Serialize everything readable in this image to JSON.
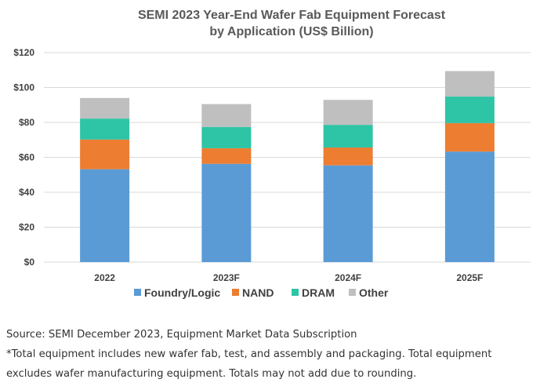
{
  "chart_data": {
    "type": "bar",
    "stacked": true,
    "title": [
      "SEMI 2023 Year-End Wafer Fab Equipment Forecast",
      "by Application (US$ Billion)"
    ],
    "categories": [
      "2022",
      "2023F",
      "2024F",
      "2025F"
    ],
    "series": [
      {
        "name": "Foundry/Logic",
        "color": "#5b9bd5",
        "values": [
          53.2,
          56.3,
          55.4,
          63.3
        ]
      },
      {
        "name": "NAND",
        "color": "#ed7d31",
        "values": [
          17.0,
          8.9,
          10.2,
          16.3
        ]
      },
      {
        "name": "DRAM",
        "color": "#2ec4a6",
        "values": [
          12.0,
          12.2,
          13.0,
          15.2
        ]
      },
      {
        "name": "Other",
        "color": "#bfbfbf",
        "values": [
          11.8,
          13.1,
          14.3,
          14.6
        ]
      }
    ],
    "ylim": [
      0,
      120
    ],
    "yticks": [
      0,
      20,
      40,
      60,
      80,
      100,
      120
    ],
    "ytick_labels": [
      "$0",
      "$20",
      "$40",
      "$60",
      "$80",
      "$100",
      "$120"
    ],
    "grid": true,
    "legend_position": "bottom"
  },
  "notes": {
    "source": "Source: SEMI December 2023, Equipment Market Data Subscription",
    "footnote_line1": "*Total equipment includes new wafer fab, test, and assembly and packaging. Total equipment",
    "footnote_line2": "excludes wafer manufacturing equipment. Totals may not add due to rounding."
  }
}
